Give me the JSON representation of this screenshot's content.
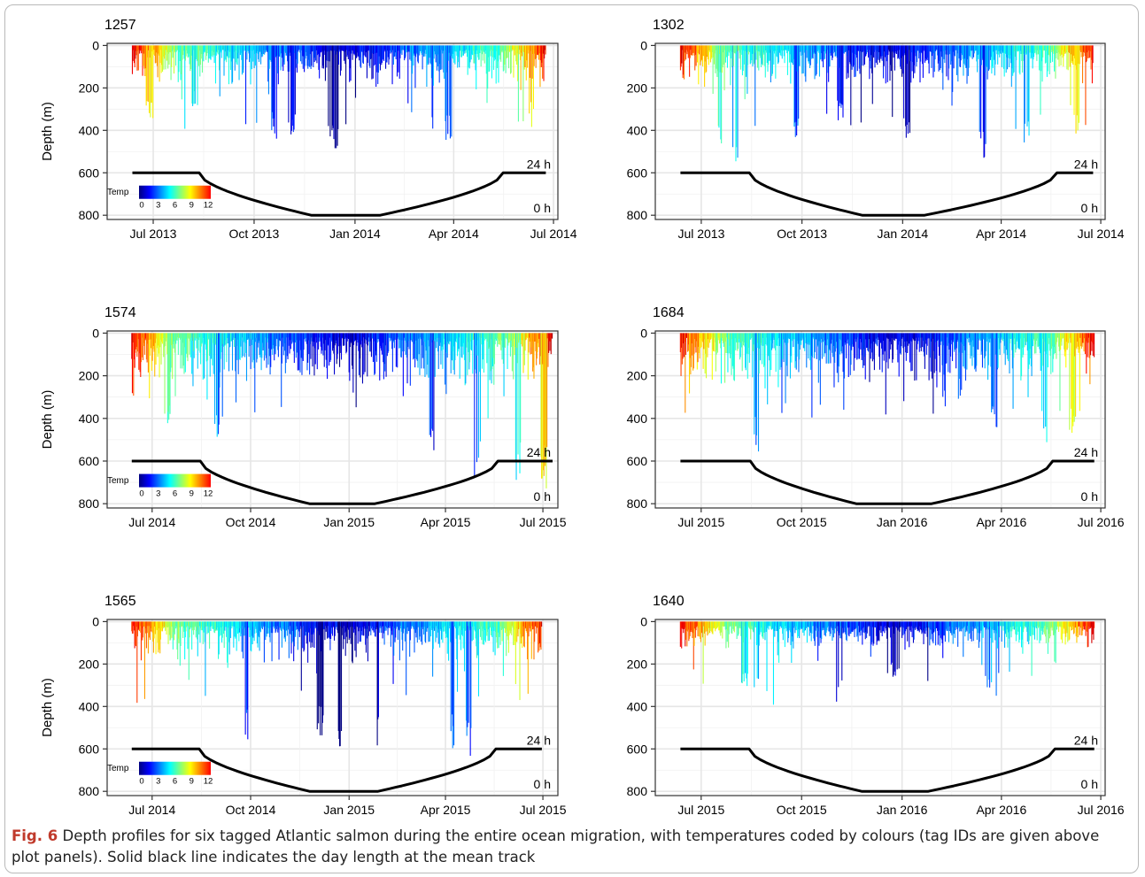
{
  "figure": {
    "caption_label": "Fig. 6",
    "caption_text": "Depth profiles for six tagged Atlantic salmon during the entire ocean migration, with temperatures coded by colours (tag IDs are given above plot panels). Solid black line indicates the day length at the mean track"
  },
  "chart_data": [
    {
      "type": "bar",
      "title": "1257",
      "xlabel": "",
      "ylabel": "Depth (m)",
      "ylim": [
        820,
        -10
      ],
      "yticks": [
        0,
        200,
        400,
        600,
        800
      ],
      "y_reversed": true,
      "xlim": [
        "2013-05-20",
        "2014-07-05"
      ],
      "x_ticks": [
        "2013-07-01",
        "2013-10-01",
        "2014-01-01",
        "2014-04-01",
        "2014-07-01"
      ],
      "x_tick_labels": [
        "Jul 2013",
        "Oct 2013",
        "Jan 2014",
        "Apr 2014",
        "Jul 2014"
      ],
      "depth_profile": {
        "start": "2013-06-12",
        "end": "2014-06-24",
        "typical_max_depth": 150,
        "deep_dive_peaks": [
          [
            "2013-06-28",
            370
          ],
          [
            "2013-08-08",
            290
          ],
          [
            "2013-10-20",
            440
          ],
          [
            "2013-11-05",
            430
          ],
          [
            "2013-12-10",
            510
          ],
          [
            "2013-12-15",
            520
          ],
          [
            "2014-03-27",
            460
          ],
          [
            "2014-06-10",
            380
          ]
        ]
      },
      "temperature_legend": {
        "title": "Temp",
        "ticks": [
          0,
          3,
          6,
          9,
          12
        ],
        "colors": [
          "#00007f",
          "#0000ff",
          "#007fff",
          "#00ffff",
          "#7fff7f",
          "#ffff00",
          "#ff7f00",
          "#ff0000"
        ],
        "shown": true
      },
      "day_length": {
        "label_top": "24 h",
        "label_bottom": "0 h",
        "polar_day_end": "2013-08-12",
        "polar_night_start": "2013-11-22",
        "polar_night_end": "2014-01-24",
        "polar_day_start": "2014-05-16"
      },
      "grid": true
    },
    {
      "type": "bar",
      "title": "1302",
      "xlabel": "",
      "ylabel": "",
      "ylim": [
        820,
        -10
      ],
      "yticks": [
        0,
        200,
        400,
        600,
        800
      ],
      "y_reversed": true,
      "xlim": [
        "2013-05-20",
        "2014-07-05"
      ],
      "x_ticks": [
        "2013-07-01",
        "2013-10-01",
        "2014-01-01",
        "2014-04-01",
        "2014-07-01"
      ],
      "x_tick_labels": [
        "Jul 2013",
        "Oct 2013",
        "Jan 2014",
        "Apr 2014",
        "Jul 2014"
      ],
      "depth_profile": {
        "start": "2013-06-12",
        "end": "2014-06-24",
        "typical_max_depth": 150,
        "deep_dive_peaks": [
          [
            "2013-07-18",
            470
          ],
          [
            "2013-08-01",
            560
          ],
          [
            "2013-09-25",
            480
          ],
          [
            "2013-11-05",
            360
          ],
          [
            "2014-01-05",
            450
          ],
          [
            "2014-03-15",
            580
          ],
          [
            "2014-04-25",
            470
          ],
          [
            "2014-06-08",
            430
          ]
        ]
      },
      "temperature_legend": {
        "shown": false
      },
      "day_length": {
        "label_top": "24 h",
        "label_bottom": "0 h",
        "polar_day_end": "2013-08-14",
        "polar_night_start": "2013-11-25",
        "polar_night_end": "2014-01-21",
        "polar_day_start": "2014-05-22"
      },
      "grid": true
    },
    {
      "type": "bar",
      "title": "1574",
      "xlabel": "",
      "ylabel": "Depth (m)",
      "ylim": [
        820,
        -10
      ],
      "yticks": [
        0,
        200,
        400,
        600,
        800
      ],
      "y_reversed": true,
      "xlim": [
        "2014-05-20",
        "2015-07-15"
      ],
      "x_ticks": [
        "2014-07-01",
        "2014-10-01",
        "2015-01-01",
        "2015-04-01",
        "2015-07-01"
      ],
      "x_tick_labels": [
        "Jul 2014",
        "Oct 2014",
        "Jan 2015",
        "Apr 2015",
        "Jul 2015"
      ],
      "depth_profile": {
        "start": "2014-06-12",
        "end": "2015-07-10",
        "typical_max_depth": 200,
        "deep_dive_peaks": [
          [
            "2014-07-15",
            440
          ],
          [
            "2014-08-30",
            500
          ],
          [
            "2015-03-20",
            600
          ],
          [
            "2015-05-01",
            690
          ],
          [
            "2015-06-08",
            700
          ],
          [
            "2015-07-02",
            740
          ]
        ]
      },
      "temperature_legend": {
        "title": "Temp",
        "ticks": [
          0,
          3,
          6,
          9,
          12
        ],
        "colors": [
          "#00007f",
          "#0000ff",
          "#007fff",
          "#00ffff",
          "#7fff7f",
          "#ffff00",
          "#ff7f00",
          "#ff0000"
        ],
        "shown": true
      },
      "day_length": {
        "label_top": "24 h",
        "label_bottom": "0 h",
        "polar_day_end": "2014-08-15",
        "polar_night_start": "2014-11-25",
        "polar_night_end": "2015-01-25",
        "polar_day_start": "2015-05-20"
      },
      "grid": true
    },
    {
      "type": "bar",
      "title": "1684",
      "xlabel": "",
      "ylabel": "",
      "ylim": [
        820,
        -10
      ],
      "yticks": [
        0,
        200,
        400,
        600,
        800
      ],
      "y_reversed": true,
      "xlim": [
        "2015-05-20",
        "2016-07-05"
      ],
      "x_ticks": [
        "2015-07-01",
        "2015-10-01",
        "2016-01-01",
        "2016-04-01",
        "2016-07-01"
      ],
      "x_tick_labels": [
        "Jul 2015",
        "Oct 2015",
        "Jan 2016",
        "Apr 2016",
        "Jul 2016"
      ],
      "depth_profile": {
        "start": "2015-06-12",
        "end": "2016-06-25",
        "typical_max_depth": 200,
        "deep_dive_peaks": [
          [
            "2015-08-20",
            560
          ],
          [
            "2015-09-15",
            400
          ],
          [
            "2016-03-25",
            470
          ],
          [
            "2016-05-10",
            520
          ],
          [
            "2016-06-05",
            470
          ]
        ]
      },
      "temperature_legend": {
        "shown": false
      },
      "day_length": {
        "label_top": "24 h",
        "label_bottom": "0 h",
        "polar_day_end": "2015-08-15",
        "polar_night_start": "2015-11-20",
        "polar_night_end": "2016-01-28",
        "polar_day_start": "2016-05-18"
      },
      "grid": true
    },
    {
      "type": "bar",
      "title": "1565",
      "xlabel": "",
      "ylabel": "Depth (m)",
      "ylim": [
        820,
        -10
      ],
      "yticks": [
        0,
        200,
        400,
        600,
        800
      ],
      "y_reversed": true,
      "xlim": [
        "2014-05-20",
        "2015-07-15"
      ],
      "x_ticks": [
        "2014-07-01",
        "2014-10-01",
        "2015-01-01",
        "2015-04-01",
        "2015-07-01"
      ],
      "x_tick_labels": [
        "Jul 2014",
        "Oct 2014",
        "Jan 2015",
        "Apr 2015",
        "Jul 2015"
      ],
      "depth_profile": {
        "start": "2014-06-12",
        "end": "2015-06-30",
        "typical_max_depth": 150,
        "deep_dive_peaks": [
          [
            "2014-09-28",
            570
          ],
          [
            "2014-12-05",
            560
          ],
          [
            "2014-12-24",
            650
          ],
          [
            "2015-01-28",
            640
          ],
          [
            "2015-04-08",
            600
          ],
          [
            "2015-04-22",
            640
          ]
        ]
      },
      "temperature_legend": {
        "title": "Temp",
        "ticks": [
          0,
          3,
          6,
          9,
          12
        ],
        "colors": [
          "#00007f",
          "#0000ff",
          "#007fff",
          "#00ffff",
          "#7fff7f",
          "#ffff00",
          "#ff7f00",
          "#ff0000"
        ],
        "shown": true
      },
      "day_length": {
        "label_top": "24 h",
        "label_bottom": "0 h",
        "polar_day_end": "2014-08-14",
        "polar_night_start": "2014-11-25",
        "polar_night_end": "2015-01-28",
        "polar_day_start": "2015-05-18"
      },
      "grid": true
    },
    {
      "type": "bar",
      "title": "1640",
      "xlabel": "",
      "ylabel": "",
      "ylim": [
        820,
        -10
      ],
      "yticks": [
        0,
        200,
        400,
        600,
        800
      ],
      "y_reversed": true,
      "xlim": [
        "2015-05-20",
        "2016-07-05"
      ],
      "x_ticks": [
        "2015-07-01",
        "2015-10-01",
        "2016-01-01",
        "2016-04-01",
        "2016-07-01"
      ],
      "x_tick_labels": [
        "Jul 2015",
        "Oct 2015",
        "Jan 2016",
        "Apr 2016",
        "Jul 2016"
      ],
      "depth_profile": {
        "start": "2015-06-12",
        "end": "2016-06-25",
        "typical_max_depth": 100,
        "deep_dive_peaks": [
          [
            "2015-08-10",
            320
          ],
          [
            "2015-08-20",
            330
          ],
          [
            "2015-12-25",
            270
          ],
          [
            "2016-03-20",
            320
          ]
        ]
      },
      "temperature_legend": {
        "shown": false
      },
      "day_length": {
        "label_top": "24 h",
        "label_bottom": "0 h",
        "polar_day_end": "2015-08-14",
        "polar_night_start": "2015-11-25",
        "polar_night_end": "2016-01-25",
        "polar_day_start": "2016-05-20"
      },
      "grid": true
    }
  ]
}
